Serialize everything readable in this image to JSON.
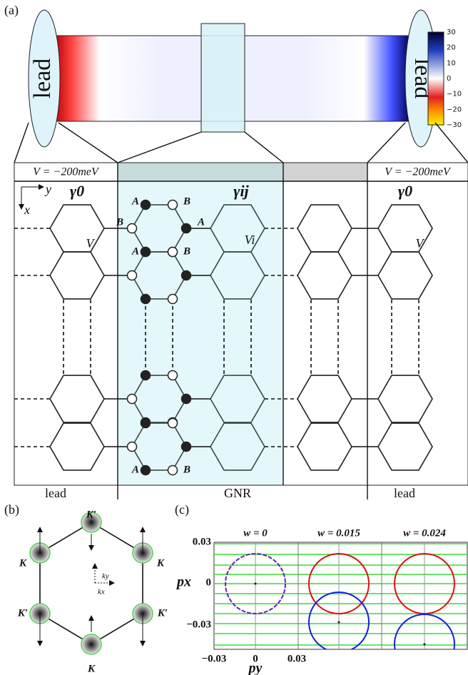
{
  "panel_a": {
    "label": "(a)",
    "lead_left": "lead",
    "lead_right": "lead",
    "colorbar_ticks": [
      "30",
      "20",
      "10",
      "0",
      "−10",
      "−20",
      "−30"
    ],
    "bias_left": "V = −200meV",
    "bias_right": "V = −200meV",
    "axis_y": "y",
    "axis_x": "x",
    "hopping_lead_left": "γ0",
    "hopping_lead_right": "γ0",
    "hopping_gnr": "γij",
    "potential_left": "V",
    "potential_right": "V",
    "potential_gnr": "Vi",
    "atom_labels": [
      "A",
      "B",
      "B",
      "A",
      "A",
      "B",
      "A",
      "B"
    ],
    "region_labels": [
      "lead",
      "GNR",
      "lead"
    ]
  },
  "panel_b": {
    "label": "(b)",
    "valleys": [
      "K′",
      "K",
      "K",
      "K′",
      "K′",
      "K"
    ],
    "ky": "ky",
    "kx": "kx"
  },
  "panel_c": {
    "label": "(c)",
    "titles": [
      "w = 0",
      "w = 0.015",
      "w = 0.024"
    ],
    "yticks": [
      "0.03",
      "0",
      "−0.03"
    ],
    "xticks": [
      "−0.03",
      "0",
      "0.03"
    ],
    "ylabel": "px",
    "xlabel": "py"
  }
}
